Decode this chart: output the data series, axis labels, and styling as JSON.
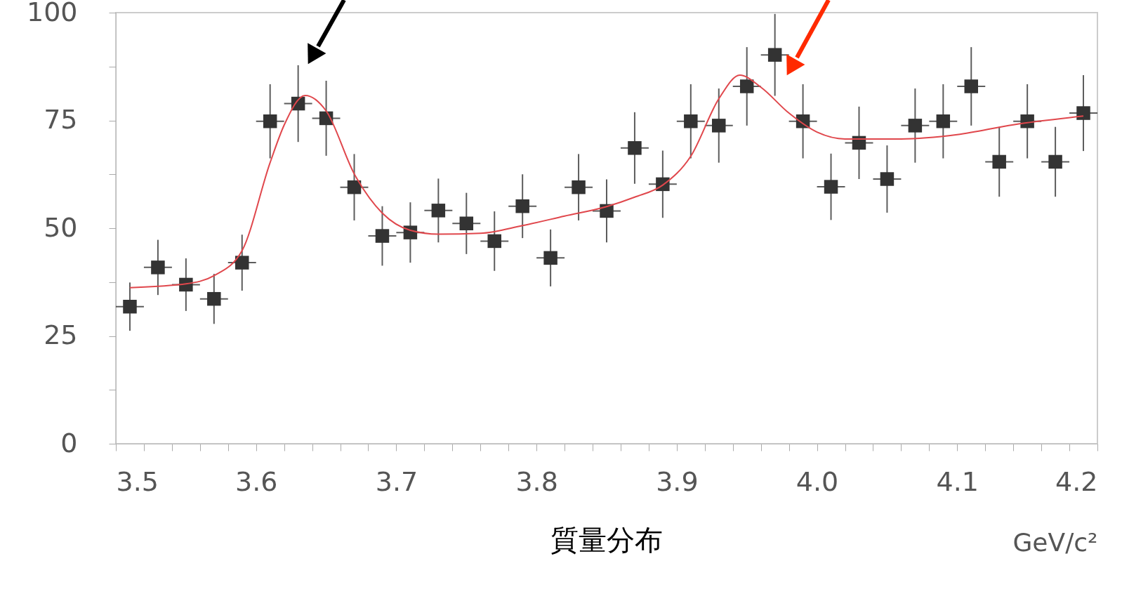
{
  "chart_data": {
    "type": "scatter",
    "title": "質量分布",
    "xlabel": "GeV/c²",
    "xlim": [
      3.5,
      4.2
    ],
    "ylim": [
      0,
      100
    ],
    "xticks": [
      3.5,
      {
        "value": 3.52,
        "label": null
      },
      {
        "value": 3.54,
        "label": null
      },
      {
        "value": 3.56,
        "label": null
      },
      {
        "value": 3.58,
        "label": null
      },
      3.6,
      {
        "value": 3.62,
        "label": null
      },
      {
        "value": 3.64,
        "label": null
      },
      {
        "value": 3.66,
        "label": null
      },
      {
        "value": 3.68,
        "label": null
      },
      3.7,
      {
        "value": 3.72,
        "label": null
      },
      {
        "value": 3.74,
        "label": null
      },
      {
        "value": 3.76,
        "label": null
      },
      {
        "value": 3.78,
        "label": null
      },
      3.8,
      {
        "value": 3.82,
        "label": null
      },
      {
        "value": 3.84,
        "label": null
      },
      {
        "value": 3.86,
        "label": null
      },
      {
        "value": 3.88,
        "label": null
      },
      3.9,
      {
        "value": 3.92,
        "label": null
      },
      {
        "value": 3.94,
        "label": null
      },
      {
        "value": 3.96,
        "label": null
      },
      {
        "value": 3.98,
        "label": null
      },
      {
        "value": 4.0,
        "label": "4.0"
      },
      {
        "value": 4.02,
        "label": null
      },
      {
        "value": 4.04,
        "label": null
      },
      {
        "value": 4.06,
        "label": null
      },
      {
        "value": 4.08,
        "label": null
      },
      4.1,
      {
        "value": 4.12,
        "label": null
      },
      {
        "value": 4.14,
        "label": null
      },
      {
        "value": 4.16,
        "label": null
      },
      {
        "value": 4.18,
        "label": null
      },
      4.2
    ],
    "yticks": [
      0,
      {
        "value": 12.5,
        "label": null
      },
      25,
      {
        "value": 37.5,
        "label": null
      },
      50,
      {
        "value": 62.5,
        "label": null
      },
      75,
      {
        "value": 87.5,
        "label": null
      },
      100
    ],
    "grid": false,
    "series": [
      {
        "type": "scatter",
        "marker": "square",
        "color": "#333333",
        "x": [
          3.51,
          3.53,
          3.55,
          3.57,
          3.59,
          3.61,
          3.63,
          3.65,
          3.67,
          3.69,
          3.71,
          3.73,
          3.75,
          3.77,
          3.79,
          3.81,
          3.83,
          3.85,
          3.87,
          3.89,
          3.91,
          3.93,
          3.95,
          3.97,
          3.99,
          4.01,
          4.03,
          4.05,
          4.07,
          4.09,
          4.11,
          4.13,
          4.15,
          4.17,
          4.19
        ],
        "values": [
          31.8,
          40.9,
          36.9,
          33.6,
          42.0,
          74.8,
          78.9,
          75.5,
          59.5,
          48.2,
          49.0,
          54.1,
          51.1,
          47.0,
          55.1,
          43.1,
          59.5,
          54.0,
          68.6,
          60.2,
          74.8,
          73.8,
          82.9,
          90.2,
          74.8,
          59.6,
          69.8,
          61.4,
          73.8,
          74.8,
          82.9,
          65.4,
          74.8,
          65.4,
          76.7
        ],
        "errors": [
          5.6,
          6.4,
          6.1,
          5.8,
          6.5,
          8.6,
          8.9,
          8.7,
          7.7,
          6.9,
          7.0,
          7.4,
          7.1,
          6.9,
          7.4,
          6.6,
          7.7,
          7.3,
          8.3,
          7.8,
          8.6,
          8.6,
          9.1,
          9.5,
          8.6,
          7.7,
          8.4,
          7.8,
          8.6,
          8.6,
          9.1,
          8.1,
          8.6,
          8.1,
          8.8
        ],
        "xerrors": [
          0.01,
          0.01,
          0.01,
          0.01,
          0.01,
          0.01,
          0.01,
          0.01,
          0.01,
          0.01,
          0.01,
          0.01,
          0.01,
          0.01,
          0.01,
          0.01,
          0.01,
          0.01,
          0.01,
          0.01,
          0.01,
          0.01,
          0.01,
          0.01,
          0.01,
          0.01,
          0.01,
          0.01,
          0.01,
          0.01,
          0.01,
          0.01,
          0.01,
          0.01,
          0.01
        ]
      },
      {
        "type": "line",
        "line_style": "solid",
        "marker": "none",
        "color": "#e0474c",
        "x": [
          3.51,
          3.55,
          3.57,
          3.59,
          3.61,
          3.62,
          3.635,
          3.65,
          3.67,
          3.69,
          3.71,
          3.73,
          3.76,
          3.79,
          3.82,
          3.85,
          3.87,
          3.89,
          3.91,
          3.93,
          3.945,
          3.96,
          3.98,
          4.0,
          4.02,
          4.06,
          4.1,
          4.14,
          4.19
        ],
        "values": [
          36.2,
          37.1,
          39.0,
          44.8,
          65.2,
          73.9,
          80.8,
          77.2,
          62.6,
          53.5,
          49.5,
          48.6,
          48.8,
          50.6,
          52.8,
          55.0,
          57.2,
          60.0,
          66.7,
          80.0,
          85.5,
          82.7,
          76.7,
          72.3,
          70.7,
          70.7,
          71.7,
          74.0,
          76.0
        ]
      }
    ]
  }
}
